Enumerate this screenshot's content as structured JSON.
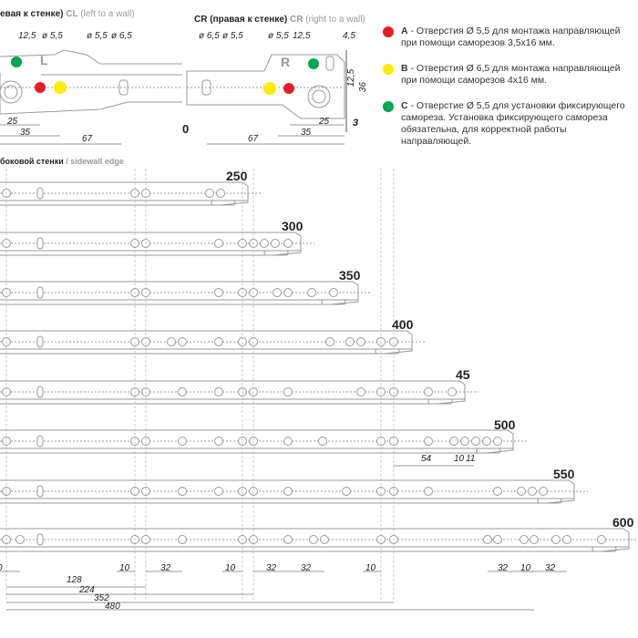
{
  "cl_title": {
    "ru": "евая к стенке)",
    "code": "CL",
    "en": "(left to a wall)"
  },
  "cr_title": {
    "code": "CR",
    "ru": "(правая к стенке)",
    "code2": "CR",
    "en": "(right to a wall)"
  },
  "cl_dims": {
    "d1": "12,5",
    "d2": "ø 5,5",
    "d3": "ø 5,5",
    "d4": "ø 6,5",
    "letter": "L",
    "a": "25",
    "b": "35",
    "c": "67"
  },
  "cr_dims": {
    "d1": "ø 6,5",
    "d2": "ø 5,5",
    "d3": "ø 5,5",
    "d4": "12,5",
    "d5": "4,5",
    "v1": "12,5",
    "v2": "36",
    "letter": "R",
    "a": "25",
    "b": "35",
    "c": "67",
    "three": "3",
    "zero": "0"
  },
  "sidewall": {
    "ru": "боковой стенки",
    "en": "/ sidewall edge"
  },
  "legend": [
    {
      "key": "A",
      "text": " - Отверстия Ø 5,5 для монтажа направляющей при помощи саморезов 3,5х16 мм.",
      "color": "#e31e24"
    },
    {
      "key": "B",
      "text": " - Отверстия Ø 6,5 для монтажа направляющей при помощи саморезов 4х16 мм.",
      "color": "#ffec00"
    },
    {
      "key": "C",
      "text": " - Отверстие Ø 5,5 для установки фиксирующего самореза. Установка фиксирующего самореза обязательна, для корректной работы направляющей.",
      "color": "#00a650"
    }
  ],
  "rails": [
    "250",
    "300",
    "350",
    "400",
    "45",
    "500",
    "550",
    "600"
  ],
  "rail500_dims": [
    "54",
    "10",
    "11"
  ],
  "bottom_dims": {
    "row": [
      "0",
      "10",
      "32",
      "10",
      "32",
      "32",
      "10",
      "32",
      "10",
      "32"
    ],
    "long": [
      "128",
      "224",
      "352",
      "480"
    ]
  }
}
